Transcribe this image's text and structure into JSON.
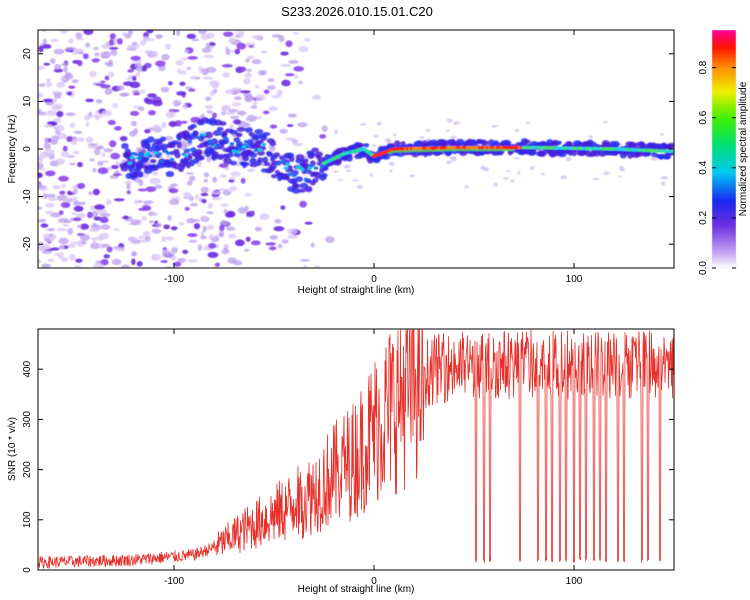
{
  "title": "S233.2026.010.15.01.C20",
  "chart_data": [
    {
      "type": "heatmap",
      "name": "spectrogram",
      "xlabel": "Height of straight line (km)",
      "ylabel": "Frequency (Hz)",
      "xlim": [
        -168,
        150
      ],
      "ylim": [
        -25,
        25
      ],
      "xticks": [
        -100,
        0,
        100
      ],
      "yticks": [
        -20,
        -10,
        0,
        10,
        20
      ],
      "colorbar": {
        "label": "Normalized spectral amplitude",
        "range": [
          0.0,
          0.95
        ],
        "ticks": [
          0.0,
          0.2,
          0.4,
          0.6,
          0.8
        ]
      },
      "ridge": [
        {
          "x": -120,
          "freq": -2.0
        },
        {
          "x": -100,
          "freq": -1.5
        },
        {
          "x": -85,
          "freq": 2.5
        },
        {
          "x": -70,
          "freq": 1.0
        },
        {
          "x": -55,
          "freq": -0.5
        },
        {
          "x": -45,
          "freq": -4.0
        },
        {
          "x": -35,
          "freq": -5.5
        },
        {
          "x": -25,
          "freq": -3.0
        },
        {
          "x": -15,
          "freq": -1.0
        },
        {
          "x": -5,
          "freq": 0.0
        },
        {
          "x": 0,
          "freq": -1.5
        },
        {
          "x": 10,
          "freq": 0.0
        },
        {
          "x": 40,
          "freq": 0.3
        },
        {
          "x": 80,
          "freq": 0.3
        },
        {
          "x": 120,
          "freq": 0.0
        },
        {
          "x": 148,
          "freq": -0.5
        }
      ]
    },
    {
      "type": "line",
      "name": "snr",
      "xlabel": "Height of straight line (km)",
      "ylabel": "SNR (10 * v/v)",
      "xlim": [
        -168,
        150
      ],
      "ylim": [
        0,
        480
      ],
      "xticks": [
        -100,
        0,
        100
      ],
      "yticks": [
        0,
        100,
        200,
        300,
        400
      ],
      "color": "#e8302a",
      "trend": [
        {
          "x": -168,
          "y": 15
        },
        {
          "x": -120,
          "y": 20
        },
        {
          "x": -90,
          "y": 30
        },
        {
          "x": -80,
          "y": 45
        },
        {
          "x": -65,
          "y": 80
        },
        {
          "x": -50,
          "y": 110
        },
        {
          "x": -35,
          "y": 140
        },
        {
          "x": -20,
          "y": 190
        },
        {
          "x": -10,
          "y": 220
        },
        {
          "x": 0,
          "y": 280
        },
        {
          "x": 10,
          "y": 330
        },
        {
          "x": 20,
          "y": 380
        },
        {
          "x": 30,
          "y": 400
        },
        {
          "x": 50,
          "y": 410
        },
        {
          "x": 100,
          "y": 410
        },
        {
          "x": 150,
          "y": 410
        }
      ],
      "dropouts_x": [
        51,
        55,
        58,
        73,
        82,
        86,
        89,
        93,
        96,
        100,
        103,
        106,
        110,
        113,
        116,
        122,
        125,
        134,
        137,
        143
      ],
      "dropout_level": 15
    }
  ]
}
